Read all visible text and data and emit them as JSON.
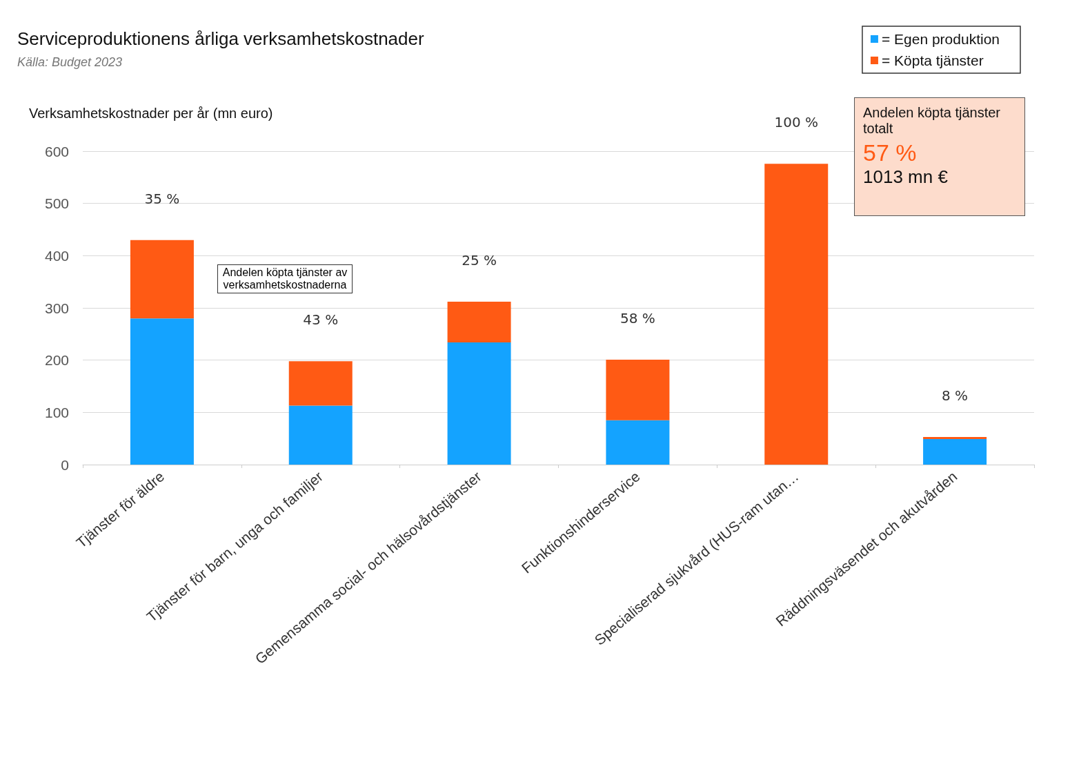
{
  "chart_data": {
    "type": "bar",
    "title": "Serviceproduktionens årliga verksamhetskostnader",
    "subtitle": "Källa: Budget 2023",
    "ylabel": "Verksamhetskostnader per år (mn euro)",
    "categories": [
      "Tjänster för äldre",
      "Tjänster för barn, unga och familjer",
      "Gemensamma social- och hälsovårdstjänster",
      "Funktionshinderservice",
      "Specialiserad sjukvård (HUS-ram utan…",
      "Räddningsväsendet och akutvården"
    ],
    "series": [
      {
        "name": "= Egen produktion",
        "color": "#14a3ff",
        "values": [
          280,
          113,
          234,
          85,
          0,
          49
        ]
      },
      {
        "name": "= Köpta tjänster",
        "color": "#ff5a14",
        "values": [
          150,
          85,
          78,
          116,
          576,
          4
        ]
      }
    ],
    "stacked": true,
    "ylim": [
      0,
      600
    ],
    "yticks": [
      0,
      100,
      200,
      300,
      400,
      500,
      600
    ],
    "grid": "y",
    "legend": "top right",
    "annotations": [
      "Andelen köpta tjänster av verksamhetskostnaderna",
      "Andelen köpta tjänster totalt",
      "57 %",
      "1013 mn €",
      "35 %",
      "43 %",
      "25 %",
      "58 %",
      "100 %",
      "8 %"
    ]
  }
}
